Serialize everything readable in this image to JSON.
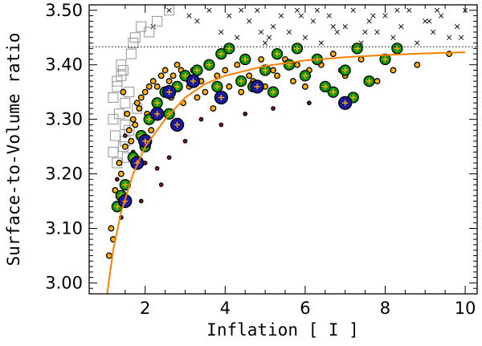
{
  "chart_data": {
    "type": "scatter",
    "title": "",
    "xlabel": "Inflation [ I ]",
    "ylabel": "Surface-to-Volume ratio",
    "xlim": [
      0.6,
      10.3
    ],
    "ylim": [
      2.98,
      3.51
    ],
    "xticks": [
      2,
      4,
      6,
      8,
      10
    ],
    "xtick_labels": [
      "2",
      "4",
      "6",
      "8",
      "10"
    ],
    "yticks": [
      3.0,
      3.1,
      3.2,
      3.3,
      3.4,
      3.5
    ],
    "ytick_labels": [
      "3.00",
      "3.10",
      "3.20",
      "3.30",
      "3.40",
      "3.50"
    ],
    "reference_line": {
      "y": 3.433,
      "style": "dotted"
    },
    "fit_curve": {
      "color": "#ff7f00",
      "x": [
        1.05,
        1.2,
        1.4,
        1.7,
        2.0,
        2.5,
        3.0,
        3.5,
        4.0,
        5.0,
        6.0,
        7.0,
        8.0,
        9.0,
        10.0
      ],
      "y": [
        2.98,
        3.06,
        3.13,
        3.2,
        3.25,
        3.3,
        3.34,
        3.365,
        3.38,
        3.398,
        3.408,
        3.414,
        3.418,
        3.421,
        3.423
      ]
    },
    "series": [
      {
        "name": "crosses above limit",
        "marker": "x",
        "color": "#000000",
        "x": [
          2.2,
          2.6,
          3.1,
          3.3,
          3.6,
          3.9,
          4.1,
          4.3,
          4.6,
          4.8,
          5.0,
          5.2,
          5.4,
          5.6,
          5.8,
          6.0,
          6.2,
          6.4,
          6.6,
          6.8,
          7.0,
          7.2,
          7.4,
          7.6,
          7.8,
          8.0,
          8.2,
          8.4,
          8.6,
          8.8,
          9.0,
          9.2,
          9.4,
          9.6,
          9.8,
          10.0,
          4.4,
          5.1,
          5.9,
          6.7,
          7.5,
          8.3,
          9.1,
          9.9,
          4.9,
          6.3,
          7.7,
          9.3
        ],
        "y": [
          3.47,
          3.5,
          3.49,
          3.48,
          3.5,
          3.46,
          3.49,
          3.45,
          3.48,
          3.5,
          3.44,
          3.47,
          3.49,
          3.46,
          3.5,
          3.45,
          3.48,
          3.44,
          3.49,
          3.46,
          3.47,
          3.5,
          3.44,
          3.48,
          3.46,
          3.49,
          3.45,
          3.47,
          3.5,
          3.44,
          3.48,
          3.46,
          3.49,
          3.45,
          3.47,
          3.5,
          3.5,
          3.45,
          3.49,
          3.47,
          3.46,
          3.5,
          3.48,
          3.45,
          3.46,
          3.5,
          3.49,
          3.5
        ]
      },
      {
        "name": "open squares",
        "marker": "square",
        "color": "#888888",
        "x": [
          1.2,
          1.3,
          1.4,
          1.5,
          1.6,
          1.2,
          1.35,
          1.5,
          1.25,
          1.45,
          1.6,
          1.3,
          1.55,
          1.75,
          1.9,
          2.1,
          2.3,
          1.7,
          2.6,
          1.4,
          1.65,
          1.3,
          1.5,
          1.8,
          1.2,
          1.45
        ],
        "y": [
          3.34,
          3.36,
          3.38,
          3.33,
          3.35,
          3.3,
          3.31,
          3.29,
          3.27,
          3.25,
          3.28,
          3.22,
          3.23,
          3.45,
          3.47,
          3.46,
          3.48,
          3.44,
          3.5,
          3.4,
          3.42,
          3.37,
          3.26,
          3.32,
          3.24,
          3.39
        ]
      },
      {
        "name": "small yellow-black",
        "marker": "circle",
        "color": "#ffb000",
        "x": [
          1.2,
          1.3,
          1.4,
          1.5,
          1.6,
          1.7,
          1.8,
          1.9,
          2.0,
          2.1,
          2.2,
          2.3,
          2.4,
          2.5,
          2.6,
          2.7,
          2.8,
          2.9,
          3.0,
          3.2,
          3.4,
          3.6,
          3.8,
          4.0,
          4.3,
          4.6,
          4.9,
          5.2,
          5.5,
          5.8,
          6.1,
          6.4,
          6.7,
          7.0,
          7.4,
          7.8,
          8.2,
          8.8,
          9.6,
          1.1,
          1.15,
          1.25,
          1.35,
          1.55,
          1.65,
          1.75,
          2.05,
          2.35,
          2.65,
          3.1,
          3.5,
          4.1,
          4.7,
          5.3,
          6.0,
          6.9,
          1.45,
          1.85,
          2.15,
          2.55,
          2.95,
          3.3,
          3.7,
          4.4,
          5.0,
          5.7
        ],
        "y": [
          3.08,
          3.14,
          3.2,
          3.25,
          3.28,
          3.3,
          3.33,
          3.34,
          3.35,
          3.36,
          3.37,
          3.36,
          3.38,
          3.39,
          3.37,
          3.38,
          3.4,
          3.39,
          3.38,
          3.39,
          3.37,
          3.4,
          3.38,
          3.39,
          3.4,
          3.38,
          3.41,
          3.39,
          3.41,
          3.4,
          3.39,
          3.4,
          3.42,
          3.38,
          3.41,
          3.37,
          3.39,
          3.4,
          3.42,
          3.05,
          3.1,
          3.17,
          3.22,
          3.31,
          3.26,
          3.29,
          3.31,
          3.33,
          3.34,
          3.36,
          3.35,
          3.36,
          3.37,
          3.38,
          3.36,
          3.39,
          3.35,
          3.32,
          3.28,
          3.31,
          3.33,
          3.34,
          3.32,
          3.35,
          3.36,
          3.37
        ]
      },
      {
        "name": "dark red small",
        "marker": "circle",
        "color": "#8b1a1a",
        "x": [
          1.3,
          1.5,
          1.7,
          2.0,
          2.3,
          2.6,
          3.0,
          3.4,
          3.9,
          4.5,
          5.2,
          6.1,
          1.4,
          1.9,
          2.4
        ],
        "y": [
          3.19,
          3.27,
          3.24,
          3.22,
          3.21,
          3.23,
          3.26,
          3.3,
          3.29,
          3.31,
          3.32,
          3.33,
          3.12,
          3.15,
          3.18
        ]
      },
      {
        "name": "green large",
        "marker": "circle",
        "color": "#119a11",
        "x": [
          1.3,
          1.5,
          1.7,
          1.9,
          2.1,
          2.3,
          2.5,
          2.8,
          3.0,
          3.3,
          3.6,
          3.9,
          4.1,
          4.4,
          4.7,
          5.0,
          5.3,
          5.6,
          6.0,
          6.3,
          6.7,
          7.0,
          7.3,
          7.6,
          8.0,
          8.3,
          1.4,
          2.0,
          2.6,
          3.8,
          4.5,
          5.2,
          6.5,
          7.2,
          5.8,
          3.2
        ],
        "y": [
          3.14,
          3.18,
          3.23,
          3.27,
          3.3,
          3.33,
          3.35,
          3.36,
          3.38,
          3.39,
          3.4,
          3.42,
          3.43,
          3.37,
          3.36,
          3.39,
          3.42,
          3.4,
          3.38,
          3.41,
          3.35,
          3.39,
          3.43,
          3.37,
          3.41,
          3.43,
          3.16,
          3.25,
          3.31,
          3.36,
          3.41,
          3.35,
          3.36,
          3.34,
          3.43,
          3.37
        ]
      },
      {
        "name": "blue large",
        "marker": "circle",
        "color": "#1a1aa0",
        "x": [
          1.5,
          1.8,
          2.0,
          2.3,
          2.6,
          3.2,
          3.9,
          4.8,
          7.0,
          2.8
        ],
        "y": [
          3.15,
          3.22,
          3.26,
          3.31,
          3.35,
          3.37,
          3.34,
          3.36,
          3.33,
          3.29
        ]
      }
    ]
  }
}
